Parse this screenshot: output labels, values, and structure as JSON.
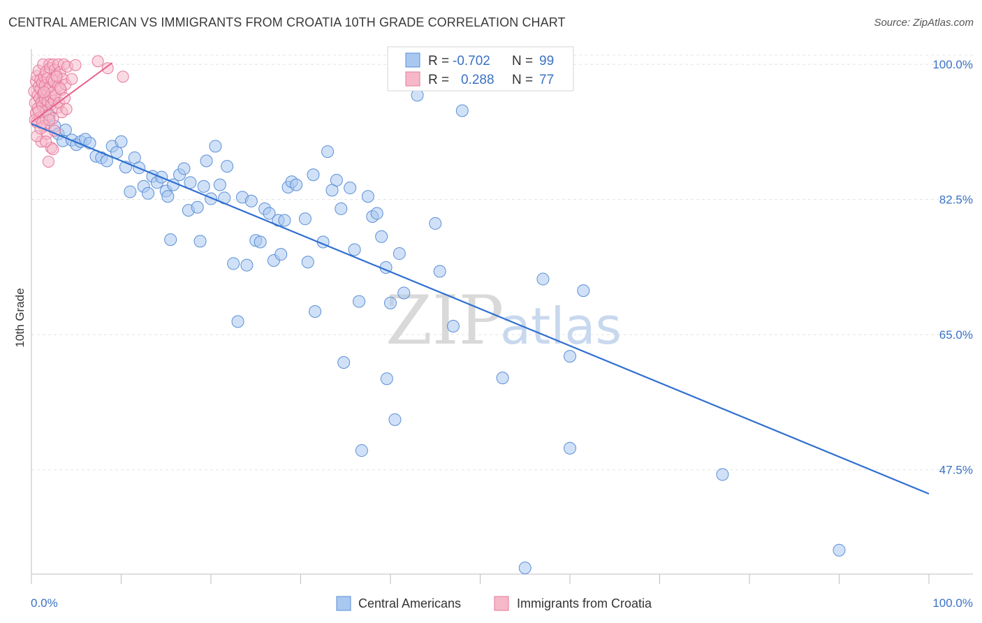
{
  "title": "CENTRAL AMERICAN VS IMMIGRANTS FROM CROATIA 10TH GRADE CORRELATION CHART",
  "source": "Source: ZipAtlas.com",
  "watermark": {
    "zip": "ZIP",
    "atlas": "atlas"
  },
  "legend": {
    "rows": [
      {
        "r_label": "R =",
        "r_value": "-0.702",
        "n_label": "N =",
        "n_value": "99",
        "color": "#a9c8f0",
        "stroke": "#5b8fd6"
      },
      {
        "r_label": "R =",
        "r_value": "0.288",
        "n_label": "N =",
        "n_value": "77",
        "color": "#f6b8c9",
        "stroke": "#e6799b"
      }
    ]
  },
  "bottom_legend": [
    "Central Americans",
    "Immigrants from Croatia"
  ],
  "chart_data": {
    "type": "scatter",
    "title": "CENTRAL AMERICAN VS IMMIGRANTS FROM CROATIA 10TH GRADE CORRELATION CHART",
    "xlabel": "",
    "ylabel": "10th Grade",
    "xlim": [
      0,
      100
    ],
    "ylim": [
      34,
      102
    ],
    "x_tick_labels": [
      "0.0%",
      "100.0%"
    ],
    "y_tick_labels": [
      "100.0%",
      "82.5%",
      "65.0%",
      "47.5%"
    ],
    "y_ticks": [
      100.0,
      82.5,
      65.0,
      47.5
    ],
    "grid": true,
    "legend_position": "top-center",
    "colors": {
      "blue_fill": "#a9c8f0",
      "blue_stroke": "#5b8fd6",
      "blue_line": "#2f6fd0",
      "pink_fill": "#f6b8c9",
      "pink_stroke": "#e6799b",
      "pink_line": "#e8608a"
    },
    "series": [
      {
        "name": "Central Americans",
        "trend": {
          "x": [
            0,
            100
          ],
          "y": [
            92.3,
            44.4
          ]
        },
        "points": [
          [
            1.2,
            95.2
          ],
          [
            1.6,
            94.5
          ],
          [
            2.0,
            93.4
          ],
          [
            2.6,
            92.0
          ],
          [
            3.0,
            91.0
          ],
          [
            3.5,
            90.1
          ],
          [
            3.8,
            91.5
          ],
          [
            4.5,
            90.2
          ],
          [
            5.0,
            89.6
          ],
          [
            5.5,
            90.0
          ],
          [
            6.0,
            90.3
          ],
          [
            6.5,
            89.8
          ],
          [
            7.2,
            88.1
          ],
          [
            7.8,
            87.9
          ],
          [
            8.4,
            87.5
          ],
          [
            9.0,
            89.4
          ],
          [
            9.5,
            88.6
          ],
          [
            10.0,
            90.0
          ],
          [
            10.5,
            86.7
          ],
          [
            11.0,
            83.5
          ],
          [
            11.5,
            87.9
          ],
          [
            12.0,
            86.6
          ],
          [
            12.5,
            84.2
          ],
          [
            13.0,
            83.3
          ],
          [
            13.5,
            85.5
          ],
          [
            14.0,
            84.7
          ],
          [
            14.5,
            85.4
          ],
          [
            15.0,
            83.6
          ],
          [
            15.2,
            82.9
          ],
          [
            15.5,
            77.3
          ],
          [
            15.8,
            84.4
          ],
          [
            16.5,
            85.7
          ],
          [
            17.0,
            86.5
          ],
          [
            17.5,
            81.1
          ],
          [
            17.7,
            84.7
          ],
          [
            18.5,
            81.5
          ],
          [
            18.8,
            77.1
          ],
          [
            19.2,
            84.2
          ],
          [
            19.5,
            87.5
          ],
          [
            20.0,
            82.6
          ],
          [
            20.5,
            89.4
          ],
          [
            21.0,
            84.4
          ],
          [
            21.5,
            82.7
          ],
          [
            21.8,
            86.8
          ],
          [
            22.5,
            74.2
          ],
          [
            23.0,
            66.7
          ],
          [
            23.5,
            82.8
          ],
          [
            24.0,
            74.0
          ],
          [
            24.5,
            82.3
          ],
          [
            25.0,
            77.2
          ],
          [
            25.5,
            77.0
          ],
          [
            26.0,
            81.3
          ],
          [
            26.5,
            80.7
          ],
          [
            27.0,
            74.6
          ],
          [
            27.5,
            79.8
          ],
          [
            27.8,
            75.4
          ],
          [
            28.2,
            79.8
          ],
          [
            28.6,
            84.1
          ],
          [
            29.0,
            84.8
          ],
          [
            29.5,
            84.4
          ],
          [
            30.5,
            80.0
          ],
          [
            30.8,
            74.4
          ],
          [
            31.4,
            85.7
          ],
          [
            31.6,
            68.0
          ],
          [
            32.5,
            77.0
          ],
          [
            33.0,
            88.7
          ],
          [
            33.5,
            83.7
          ],
          [
            34.0,
            85.0
          ],
          [
            34.5,
            81.3
          ],
          [
            34.8,
            61.4
          ],
          [
            35.5,
            84.0
          ],
          [
            36.0,
            76.0
          ],
          [
            36.5,
            69.3
          ],
          [
            36.8,
            50.0
          ],
          [
            37.5,
            82.9
          ],
          [
            38.0,
            80.3
          ],
          [
            38.5,
            80.7
          ],
          [
            39.0,
            77.7
          ],
          [
            39.5,
            73.7
          ],
          [
            39.6,
            59.3
          ],
          [
            40.0,
            69.1
          ],
          [
            40.5,
            54.0
          ],
          [
            41.0,
            75.5
          ],
          [
            41.5,
            70.4
          ],
          [
            43.0,
            96.0
          ],
          [
            45.0,
            79.4
          ],
          [
            45.5,
            73.2
          ],
          [
            47.0,
            66.1
          ],
          [
            48.0,
            94.0
          ],
          [
            52.5,
            59.4
          ],
          [
            55.0,
            34.8
          ],
          [
            57.0,
            72.2
          ],
          [
            60.0,
            50.3
          ],
          [
            60.0,
            62.2
          ],
          [
            61.5,
            70.7
          ],
          [
            77.0,
            46.9
          ],
          [
            90.0,
            37.1
          ],
          [
            49.0,
            101.0
          ],
          [
            50.0,
            100.3
          ]
        ]
      },
      {
        "name": "Immigrants from Croatia",
        "trend": {
          "x": [
            0,
            9.0
          ],
          "y": [
            92.5,
            100.2
          ]
        },
        "points": [
          [
            0.3,
            96.5
          ],
          [
            0.4,
            95.0
          ],
          [
            0.5,
            93.7
          ],
          [
            0.5,
            97.8
          ],
          [
            0.6,
            98.5
          ],
          [
            0.6,
            92.5
          ],
          [
            0.7,
            96.0
          ],
          [
            0.7,
            94.3
          ],
          [
            0.8,
            99.2
          ],
          [
            0.8,
            97.1
          ],
          [
            0.9,
            95.6
          ],
          [
            0.9,
            93.1
          ],
          [
            1.0,
            98.0
          ],
          [
            1.0,
            96.8
          ],
          [
            1.1,
            95.0
          ],
          [
            1.1,
            90.0
          ],
          [
            1.2,
            97.6
          ],
          [
            1.2,
            94.6
          ],
          [
            1.3,
            100.0
          ],
          [
            1.3,
            96.2
          ],
          [
            1.4,
            98.4
          ],
          [
            1.4,
            92.0
          ],
          [
            1.5,
            95.5
          ],
          [
            1.5,
            97.3
          ],
          [
            1.6,
            99.0
          ],
          [
            1.6,
            94.0
          ],
          [
            1.7,
            96.6
          ],
          [
            1.7,
            91.0
          ],
          [
            1.8,
            98.2
          ],
          [
            1.8,
            95.2
          ],
          [
            1.9,
            87.4
          ],
          [
            1.9,
            93.5
          ],
          [
            2.0,
            100.0
          ],
          [
            2.0,
            97.0
          ],
          [
            2.1,
            95.8
          ],
          [
            2.1,
            99.5
          ],
          [
            2.2,
            89.2
          ],
          [
            2.2,
            94.8
          ],
          [
            2.3,
            98.0
          ],
          [
            2.3,
            96.3
          ],
          [
            2.4,
            100.0
          ],
          [
            2.4,
            93.0
          ],
          [
            2.5,
            97.8
          ],
          [
            2.5,
            95.3
          ],
          [
            2.6,
            99.3
          ],
          [
            2.6,
            91.4
          ],
          [
            2.7,
            96.0
          ],
          [
            2.8,
            98.6
          ],
          [
            2.9,
            94.4
          ],
          [
            3.0,
            100.0
          ],
          [
            3.0,
            97.2
          ],
          [
            3.1,
            95.0
          ],
          [
            3.2,
            99.0
          ],
          [
            3.3,
            96.7
          ],
          [
            3.4,
            93.8
          ],
          [
            3.5,
            98.1
          ],
          [
            3.6,
            100.0
          ],
          [
            3.7,
            95.6
          ],
          [
            3.8,
            97.4
          ],
          [
            3.9,
            94.2
          ],
          [
            4.0,
            99.7
          ],
          [
            0.4,
            92.8
          ],
          [
            0.6,
            90.7
          ],
          [
            0.8,
            93.9
          ],
          [
            1.0,
            91.7
          ],
          [
            1.2,
            92.4
          ],
          [
            1.4,
            96.4
          ],
          [
            1.6,
            90.0
          ],
          [
            2.0,
            92.8
          ],
          [
            2.4,
            89.0
          ],
          [
            2.8,
            98.4
          ],
          [
            3.2,
            96.9
          ],
          [
            4.5,
            98.1
          ],
          [
            4.9,
            99.9
          ],
          [
            7.4,
            100.4
          ],
          [
            10.2,
            98.4
          ],
          [
            8.5,
            99.5
          ]
        ]
      }
    ]
  }
}
